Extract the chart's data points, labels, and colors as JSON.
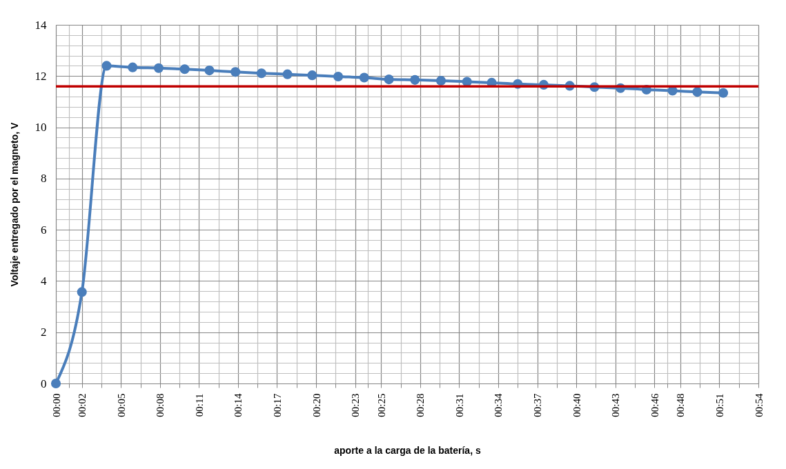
{
  "chart_data": {
    "type": "line",
    "xlabel": "aporte a la carga de la batería, s",
    "ylabel": "Voltaje entregado por el magneto, V",
    "x": [
      0,
      2.0,
      3.9,
      5.9,
      7.9,
      9.9,
      11.8,
      13.8,
      15.8,
      17.8,
      19.7,
      21.7,
      23.7,
      25.6,
      27.6,
      29.6,
      31.6,
      33.5,
      35.5,
      37.5,
      39.5,
      41.4,
      43.4,
      45.4,
      47.4,
      49.3,
      51.3
    ],
    "series": [
      {
        "color": "#4a7ebb",
        "values": [
          0,
          3.57,
          12.4,
          12.34,
          12.31,
          12.27,
          12.22,
          12.16,
          12.11,
          12.07,
          12.03,
          11.98,
          11.94,
          11.87,
          11.85,
          11.82,
          11.78,
          11.74,
          11.69,
          11.66,
          11.62,
          11.57,
          11.53,
          11.47,
          11.43,
          11.38,
          11.34
        ]
      }
    ],
    "xlim": [
      0,
      54
    ],
    "xticks": [
      {
        "value": 0,
        "label": "00:00"
      },
      {
        "value": 1,
        "label": null
      },
      {
        "value": 2,
        "label": "00:02"
      },
      {
        "value": 3.5,
        "label": null
      },
      {
        "value": 5,
        "label": "00:05"
      },
      {
        "value": 6.5,
        "label": null
      },
      {
        "value": 8,
        "label": "00:08"
      },
      {
        "value": 9.5,
        "label": null
      },
      {
        "value": 11,
        "label": "00:11"
      },
      {
        "value": 12.5,
        "label": null
      },
      {
        "value": 14,
        "label": "00:14"
      },
      {
        "value": 15.5,
        "label": null
      },
      {
        "value": 17,
        "label": "00:17"
      },
      {
        "value": 18.5,
        "label": null
      },
      {
        "value": 20,
        "label": "00:20"
      },
      {
        "value": 21.5,
        "label": null
      },
      {
        "value": 23,
        "label": "00:23"
      },
      {
        "value": 24,
        "label": null
      },
      {
        "value": 25,
        "label": "00:25"
      },
      {
        "value": 26.5,
        "label": null
      },
      {
        "value": 28,
        "label": "00:28"
      },
      {
        "value": 29.5,
        "label": null
      },
      {
        "value": 31,
        "label": "00:31"
      },
      {
        "value": 32.5,
        "label": null
      },
      {
        "value": 34,
        "label": "00:34"
      },
      {
        "value": 35.5,
        "label": null
      },
      {
        "value": 37,
        "label": "00:37"
      },
      {
        "value": 38.5,
        "label": null
      },
      {
        "value": 40,
        "label": "00:40"
      },
      {
        "value": 41.5,
        "label": null
      },
      {
        "value": 43,
        "label": "00:43"
      },
      {
        "value": 44.5,
        "label": null
      },
      {
        "value": 46,
        "label": "00:46"
      },
      {
        "value": 47,
        "label": null
      },
      {
        "value": 48,
        "label": "00:48"
      },
      {
        "value": 49.5,
        "label": null
      },
      {
        "value": 51,
        "label": "00:51"
      },
      {
        "value": 52.5,
        "label": null
      },
      {
        "value": 54,
        "label": "00:54"
      }
    ],
    "ylim": [
      0,
      14
    ],
    "yticks": [
      0,
      {
        "value": 0.4,
        "label": null
      },
      {
        "value": 0.8,
        "label": null
      },
      {
        "value": 1.2,
        "label": null
      },
      {
        "value": 1.6,
        "label": null
      },
      2,
      {
        "value": 2.4,
        "label": null
      },
      {
        "value": 2.8,
        "label": null
      },
      {
        "value": 3.2,
        "label": null
      },
      {
        "value": 3.6,
        "label": null
      },
      4,
      {
        "value": 4.4,
        "label": null
      },
      {
        "value": 4.8,
        "label": null
      },
      {
        "value": 5.2,
        "label": null
      },
      {
        "value": 5.6,
        "label": null
      },
      6,
      {
        "value": 6.4,
        "label": null
      },
      {
        "value": 6.8,
        "label": null
      },
      {
        "value": 7.2,
        "label": null
      },
      {
        "value": 7.6,
        "label": null
      },
      8,
      {
        "value": 8.4,
        "label": null
      },
      {
        "value": 8.8,
        "label": null
      },
      {
        "value": 9.2,
        "label": null
      },
      {
        "value": 9.6,
        "label": null
      },
      10,
      {
        "value": 10.4,
        "label": null
      },
      {
        "value": 10.8,
        "label": null
      },
      {
        "value": 11.2,
        "label": null
      },
      {
        "value": 11.6,
        "label": null
      },
      12,
      {
        "value": 12.4,
        "label": null
      },
      {
        "value": 12.8,
        "label": null
      },
      {
        "value": 13.2,
        "label": null
      },
      {
        "value": 13.6,
        "label": null
      },
      14
    ],
    "ref_lines": [
      {
        "axis": "y",
        "value": 11.6,
        "color": "#c00000"
      }
    ],
    "grid": true,
    "marker": "circle"
  }
}
